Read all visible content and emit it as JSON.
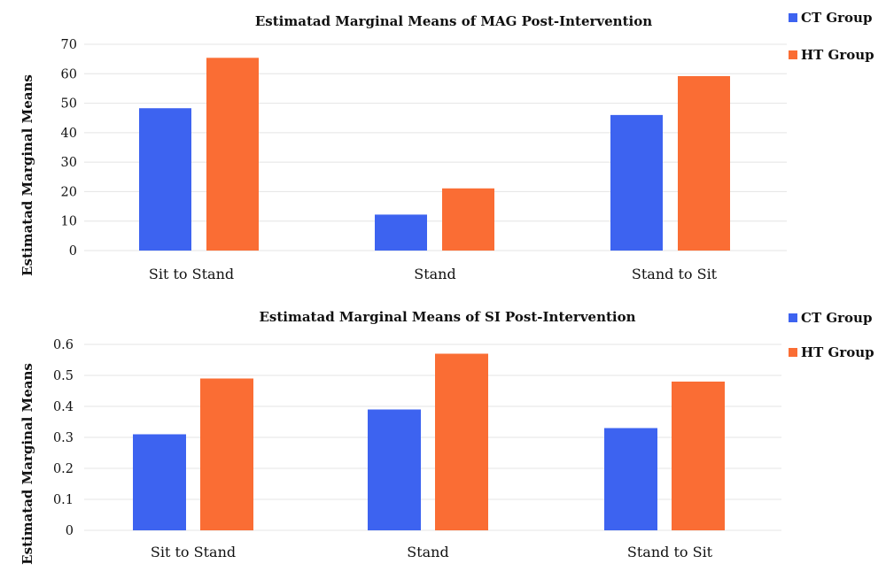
{
  "chart_data": [
    {
      "type": "bar",
      "title": "Estimatad Marginal Means of MAG Post-Intervention",
      "xlabel": "",
      "ylabel": "Estimatad Marginal Means",
      "categories": [
        "Sit to Stand",
        "Stand",
        "Stand to Sit"
      ],
      "series": [
        {
          "name": "CT Group",
          "color": "#3d63f0",
          "values": [
            48.3,
            12.2,
            46.0
          ]
        },
        {
          "name": "HT Group",
          "color": "#fa6d34",
          "values": [
            65.4,
            21.1,
            59.2
          ]
        }
      ],
      "ylim": [
        0,
        70
      ],
      "yticks": [
        0,
        10,
        20,
        30,
        40,
        50,
        60,
        70
      ],
      "ytick_labels": [
        "0",
        "10",
        "20",
        "30",
        "40",
        "50",
        "60",
        "70"
      ],
      "grid": true,
      "legend_position": "top-right"
    },
    {
      "type": "bar",
      "title": "Estimatad Marginal Means of SI Post-Intervention",
      "xlabel": "",
      "ylabel": "Estimatad Marginal Means",
      "categories": [
        "Sit to Stand",
        "Stand",
        "Stand to Sit"
      ],
      "series": [
        {
          "name": "CT Group",
          "color": "#3d63f0",
          "values": [
            0.31,
            0.39,
            0.33
          ]
        },
        {
          "name": "HT Group",
          "color": "#fa6d34",
          "values": [
            0.49,
            0.57,
            0.48
          ]
        }
      ],
      "ylim": [
        0,
        0.6
      ],
      "yticks": [
        0,
        0.1,
        0.2,
        0.3,
        0.4,
        0.5,
        0.6
      ],
      "ytick_labels": [
        "0",
        "0.1",
        "0.2",
        "0.3",
        "0.4",
        "0.5",
        "0.6"
      ],
      "grid": true,
      "legend_position": "top-right"
    }
  ]
}
